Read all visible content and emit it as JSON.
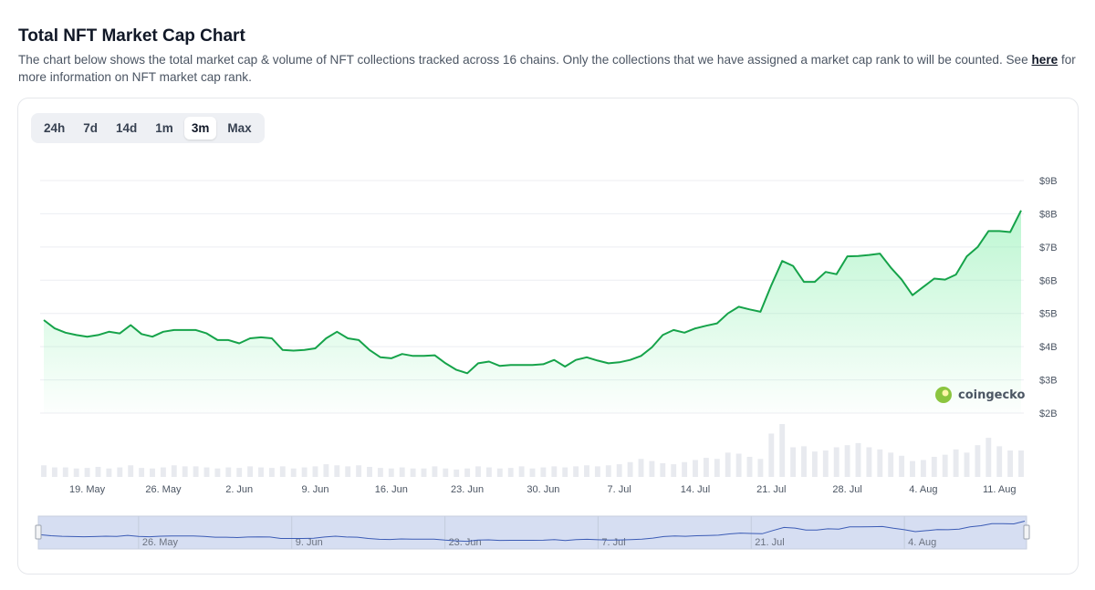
{
  "header": {
    "title": "Total NFT Market Cap Chart",
    "description": "The chart below shows the total market cap & volume of NFT collections tracked across 16 chains. Only the collections that we have assigned a market cap rank to will be counted. See",
    "link_text": "here",
    "description_tail": "for more information on NFT market cap rank."
  },
  "range_tabs": [
    {
      "label": "24h",
      "active": false
    },
    {
      "label": "7d",
      "active": false
    },
    {
      "label": "14d",
      "active": false
    },
    {
      "label": "1m",
      "active": false
    },
    {
      "label": "3m",
      "active": true
    },
    {
      "label": "Max",
      "active": false
    }
  ],
  "watermark": "coingecko",
  "colors": {
    "line": "#16a34a",
    "area_top": "#86efac",
    "volume_bar": "#e8eaef",
    "navigator_fill": "#d6def2",
    "navigator_line": "#3b5bb5"
  },
  "chart_data": {
    "type": "area",
    "x_unit": "date",
    "x_tick_labels": [
      "19. May",
      "26. May",
      "2. Jun",
      "9. Jun",
      "16. Jun",
      "23. Jun",
      "30. Jun",
      "7. Jul",
      "14. Jul",
      "21. Jul",
      "28. Jul",
      "4. Aug",
      "11. Aug"
    ],
    "y_tick_labels": [
      "$9B",
      "$8B",
      "$7B",
      "$6B",
      "$5B",
      "$4B",
      "$3B",
      "$2B"
    ],
    "ylim": [
      2,
      9
    ],
    "y_unit": "$B",
    "grid": true,
    "series": [
      {
        "values": [
          4.8,
          4.55,
          4.42,
          4.35,
          4.3,
          4.35,
          4.45,
          4.4,
          4.65,
          4.38,
          4.3,
          4.45,
          4.5,
          4.5,
          4.5,
          4.4,
          4.2,
          4.2,
          4.1,
          4.25,
          4.28,
          4.25,
          3.9,
          3.88,
          3.9,
          3.95,
          4.25,
          4.45,
          4.25,
          4.2,
          3.9,
          3.68,
          3.65,
          3.78,
          3.72,
          3.72,
          3.74,
          3.5,
          3.3,
          3.2,
          3.5,
          3.55,
          3.42,
          3.45,
          3.45,
          3.45,
          3.47,
          3.6,
          3.4,
          3.6,
          3.68,
          3.58,
          3.5,
          3.53,
          3.6,
          3.72,
          3.98,
          4.35,
          4.5,
          4.42,
          4.55,
          4.63,
          4.7,
          5.0,
          5.2,
          5.12,
          5.05,
          5.85,
          6.58,
          6.43,
          5.95,
          5.95,
          6.25,
          6.18,
          6.72,
          6.73,
          6.76,
          6.8,
          6.38,
          6.02,
          5.55,
          5.8,
          6.05,
          6.02,
          6.17,
          6.72,
          7.0,
          7.48,
          7.48,
          7.45,
          8.1
        ]
      }
    ],
    "volume_relative": [
      0.22,
      0.18,
      0.18,
      0.16,
      0.17,
      0.19,
      0.16,
      0.18,
      0.22,
      0.17,
      0.16,
      0.18,
      0.22,
      0.2,
      0.2,
      0.18,
      0.16,
      0.18,
      0.17,
      0.2,
      0.18,
      0.17,
      0.2,
      0.16,
      0.18,
      0.2,
      0.24,
      0.22,
      0.2,
      0.22,
      0.19,
      0.17,
      0.16,
      0.18,
      0.16,
      0.16,
      0.2,
      0.16,
      0.14,
      0.16,
      0.2,
      0.18,
      0.16,
      0.17,
      0.2,
      0.16,
      0.18,
      0.2,
      0.18,
      0.2,
      0.22,
      0.2,
      0.22,
      0.24,
      0.28,
      0.34,
      0.3,
      0.26,
      0.24,
      0.28,
      0.32,
      0.36,
      0.34,
      0.46,
      0.44,
      0.38,
      0.34,
      0.82,
      1.0,
      0.56,
      0.58,
      0.48,
      0.5,
      0.56,
      0.6,
      0.64,
      0.56,
      0.52,
      0.46,
      0.4,
      0.3,
      0.32,
      0.38,
      0.42,
      0.52,
      0.46,
      0.6,
      0.74,
      0.58,
      0.5,
      0.5
    ]
  }
}
